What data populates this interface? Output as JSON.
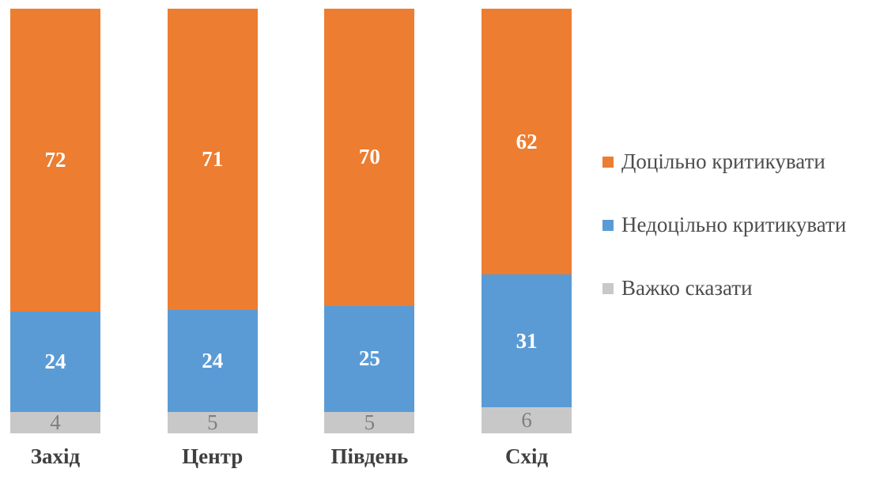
{
  "chart_data": {
    "type": "bar",
    "subtype": "stacked-vertical-100",
    "title": "",
    "xlabel": "",
    "ylabel": "",
    "ylim": [
      0,
      100
    ],
    "grid": false,
    "legend_position": "right",
    "categories": [
      "Захід",
      "Центр",
      "Південь",
      "Схід"
    ],
    "series": [
      {
        "name": "Доцільно критикувати",
        "color": "#ED7D31",
        "label_color": "#FFFFFF",
        "label_style": "bold",
        "values": [
          72,
          71,
          70,
          62
        ]
      },
      {
        "name": "Недоцільно критикувати",
        "color": "#5B9BD5",
        "label_color": "#FFFFFF",
        "label_style": "bold",
        "values": [
          24,
          24,
          25,
          31
        ]
      },
      {
        "name": "Важко сказати",
        "color": "#C8C8C8",
        "label_color": "#7F7F7F",
        "label_style": "normal",
        "values": [
          4,
          5,
          5,
          6
        ]
      }
    ]
  }
}
